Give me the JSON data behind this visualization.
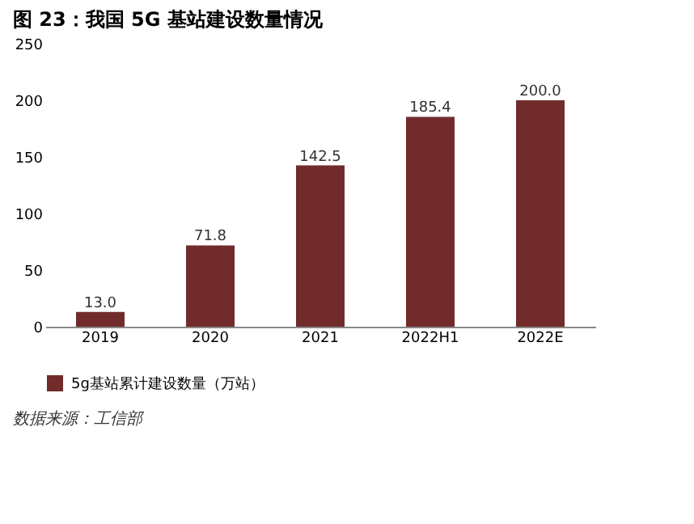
{
  "chart_data": {
    "type": "bar",
    "title": "图 23：我国 5G 基站建设数量情况",
    "categories": [
      "2019",
      "2020",
      "2021",
      "2022H1",
      "2022E"
    ],
    "series": [
      {
        "name": "5g基站累计建设数量（万站）",
        "color": "#722b2b",
        "values": [
          13.0,
          71.8,
          142.5,
          185.4,
          200.0
        ]
      }
    ],
    "value_labels": [
      "13.0",
      "71.8",
      "142.5",
      "185.4",
      "200.0"
    ],
    "ylim": [
      0,
      250
    ],
    "yticks": [
      0,
      50,
      100,
      150,
      200,
      250
    ],
    "grid": false,
    "legend": "bottom",
    "annotations": [
      "数据来源：工信部"
    ]
  }
}
